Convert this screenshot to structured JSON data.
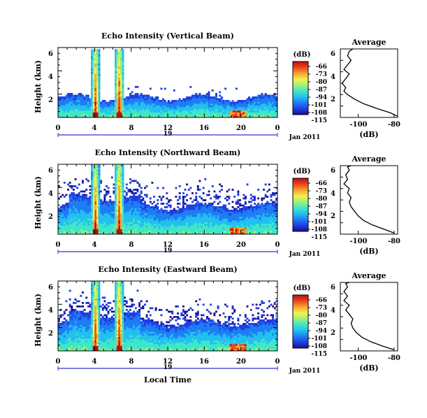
{
  "colors": {
    "scale": [
      "#1b0f8f",
      "#1f3fe0",
      "#1e7cf5",
      "#22bff0",
      "#3fe6c8",
      "#9ef07a",
      "#f2f24a",
      "#f7a832",
      "#ef4a1c",
      "#b90f0f"
    ],
    "axis": "#000000",
    "date_bar": "#3333cc"
  },
  "chart_data": [
    {
      "type": "heatmap",
      "title": "Echo Intensity (Vertical Beam)",
      "ylabel": "Height (km)",
      "xticks": [
        "0",
        "4",
        "8",
        "12",
        "16",
        "20",
        "0"
      ],
      "yticks": [
        "2",
        "4",
        "6"
      ],
      "date_day": "19",
      "date_label": "Jan 2011",
      "xlim": [
        0,
        24
      ],
      "ylim": [
        0,
        6
      ],
      "colorbar": {
        "label": "(dB)",
        "ticks": [
          "-66",
          "-73",
          "-80",
          "-87",
          "-94",
          "-101",
          "-108",
          "-115"
        ]
      },
      "profile": {
        "title": "Average",
        "xlabel": "(dB)",
        "xticks": [
          "-100",
          "-80"
        ],
        "yticks": [
          "2",
          "4",
          "6"
        ],
        "xlim": [
          -110,
          -78
        ],
        "x": [
          -78,
          -82,
          -90,
          -97,
          -102,
          -106,
          -108,
          -107,
          -109,
          -107,
          -105,
          -108,
          -106,
          -104,
          -106,
          -105,
          -103
        ],
        "y": [
          0.1,
          0.4,
          0.8,
          1.2,
          1.6,
          2.0,
          2.3,
          2.6,
          3.0,
          3.4,
          3.8,
          4.2,
          4.6,
          5.0,
          5.4,
          5.8,
          6.0
        ]
      }
    },
    {
      "type": "heatmap",
      "title": "Echo Intensity (Northward Beam)",
      "ylabel": "Height (km)",
      "xticks": [
        "0",
        "4",
        "8",
        "12",
        "16",
        "20",
        "0"
      ],
      "yticks": [
        "2",
        "4",
        "6"
      ],
      "date_day": "19",
      "date_label": "Jan 2011",
      "xlim": [
        0,
        24
      ],
      "ylim": [
        0,
        6
      ],
      "colorbar": {
        "label": "(dB)",
        "ticks": [
          "-66",
          "-73",
          "-80",
          "-87",
          "-94",
          "-101",
          "-108",
          "-115"
        ]
      },
      "profile": {
        "title": "Average",
        "xlabel": "(dB)",
        "xticks": [
          "-100",
          "-80"
        ],
        "yticks": [
          "2",
          "4",
          "6"
        ],
        "xlim": [
          -110,
          -78
        ],
        "x": [
          -80,
          -85,
          -92,
          -97,
          -100,
          -102,
          -104,
          -105,
          -104,
          -106,
          -105,
          -108,
          -106,
          -107,
          -105,
          -106,
          -104
        ],
        "y": [
          0.1,
          0.4,
          0.8,
          1.2,
          1.6,
          2.0,
          2.4,
          2.8,
          3.2,
          3.6,
          4.0,
          4.4,
          4.8,
          5.2,
          5.6,
          5.9,
          6.0
        ]
      }
    },
    {
      "type": "heatmap",
      "title": "Echo Intensity (Eastward Beam)",
      "ylabel": "Height (km)",
      "xticks": [
        "0",
        "4",
        "8",
        "12",
        "16",
        "20",
        "0"
      ],
      "yticks": [
        "2",
        "4",
        "6"
      ],
      "date_day": "19",
      "date_label": "Jan 2011",
      "xlim": [
        0,
        24
      ],
      "ylim": [
        0,
        6
      ],
      "colorbar": {
        "label": "(dB)",
        "ticks": [
          "-66",
          "-73",
          "-80",
          "-87",
          "-94",
          "-101",
          "-108",
          "-115"
        ]
      },
      "profile": {
        "title": "Average",
        "xlabel": "(dB)",
        "xticks": [
          "-100",
          "-80"
        ],
        "yticks": [
          "2",
          "4",
          "6"
        ],
        "xlim": [
          -110,
          -78
        ],
        "x": [
          -80,
          -86,
          -93,
          -98,
          -101,
          -103,
          -104,
          -103,
          -105,
          -107,
          -105,
          -108,
          -106,
          -108,
          -106,
          -107,
          -105
        ],
        "y": [
          0.1,
          0.4,
          0.8,
          1.2,
          1.6,
          2.0,
          2.4,
          2.8,
          3.2,
          3.6,
          4.0,
          4.4,
          4.8,
          5.2,
          5.6,
          5.9,
          6.0
        ]
      }
    }
  ],
  "xaxis_label": "Local Time"
}
